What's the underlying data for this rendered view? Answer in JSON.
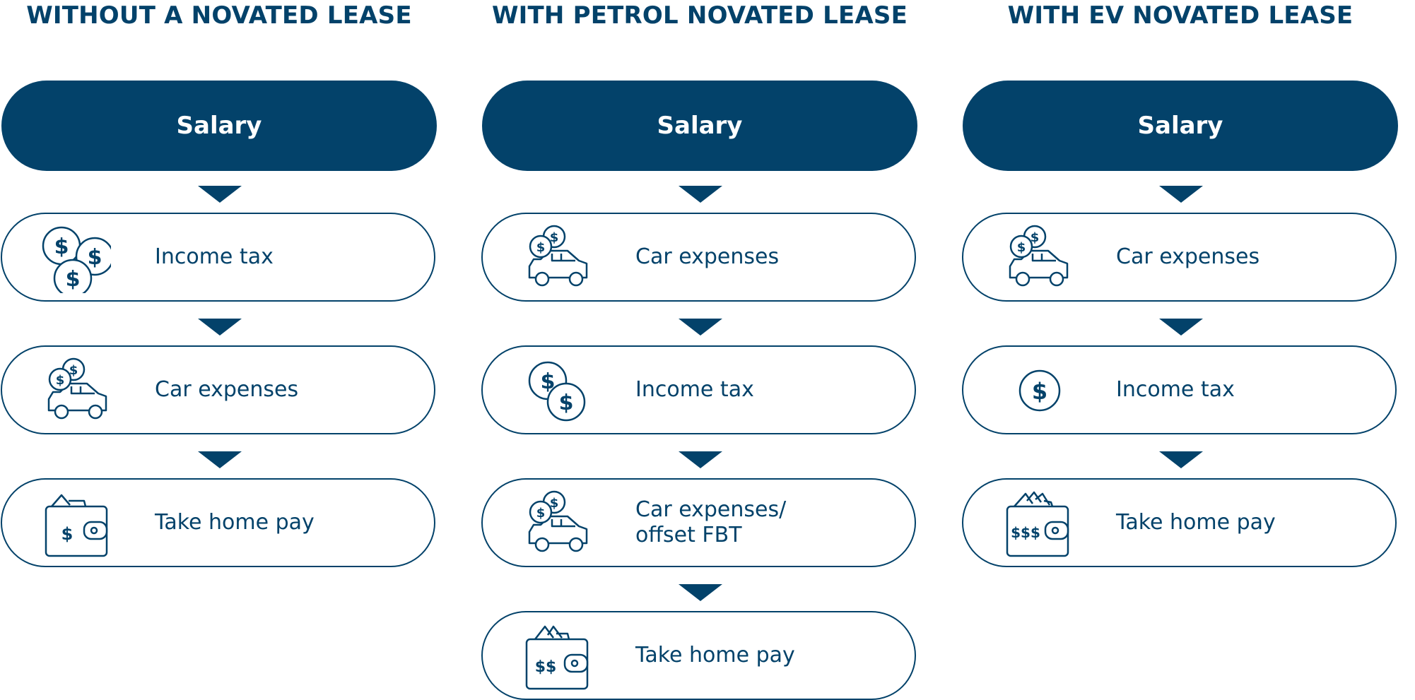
{
  "columns": [
    {
      "title": "WITHOUT A NOVATED LEASE",
      "salary_label": "Salary",
      "steps": [
        {
          "icon": "three-coins-icon",
          "label": "Income tax"
        },
        {
          "icon": "car-with-coins-icon",
          "label": "Car expenses"
        },
        {
          "icon": "wallet-one-dollar-icon",
          "label": "Take home pay",
          "wallet_text": "$"
        }
      ]
    },
    {
      "title": "WITH PETROL NOVATED LEASE",
      "salary_label": "Salary",
      "steps": [
        {
          "icon": "car-with-coins-icon",
          "label": "Car expenses"
        },
        {
          "icon": "two-coins-icon",
          "label": "Income tax"
        },
        {
          "icon": "car-with-coins-icon",
          "label": "Car expenses/\noffset FBT"
        },
        {
          "icon": "wallet-two-dollar-icon",
          "label": "Take home pay",
          "wallet_text": "$$"
        }
      ]
    },
    {
      "title": "WITH EV NOVATED LEASE",
      "salary_label": "Salary",
      "steps": [
        {
          "icon": "car-with-coins-icon",
          "label": "Car expenses"
        },
        {
          "icon": "single-coin-icon",
          "label": "Income tax"
        },
        {
          "icon": "wallet-three-dollar-icon",
          "label": "Take home pay",
          "wallet_text": "$$$"
        }
      ]
    }
  ],
  "colors": {
    "primary": "#03426a",
    "background": "#ffffff"
  }
}
